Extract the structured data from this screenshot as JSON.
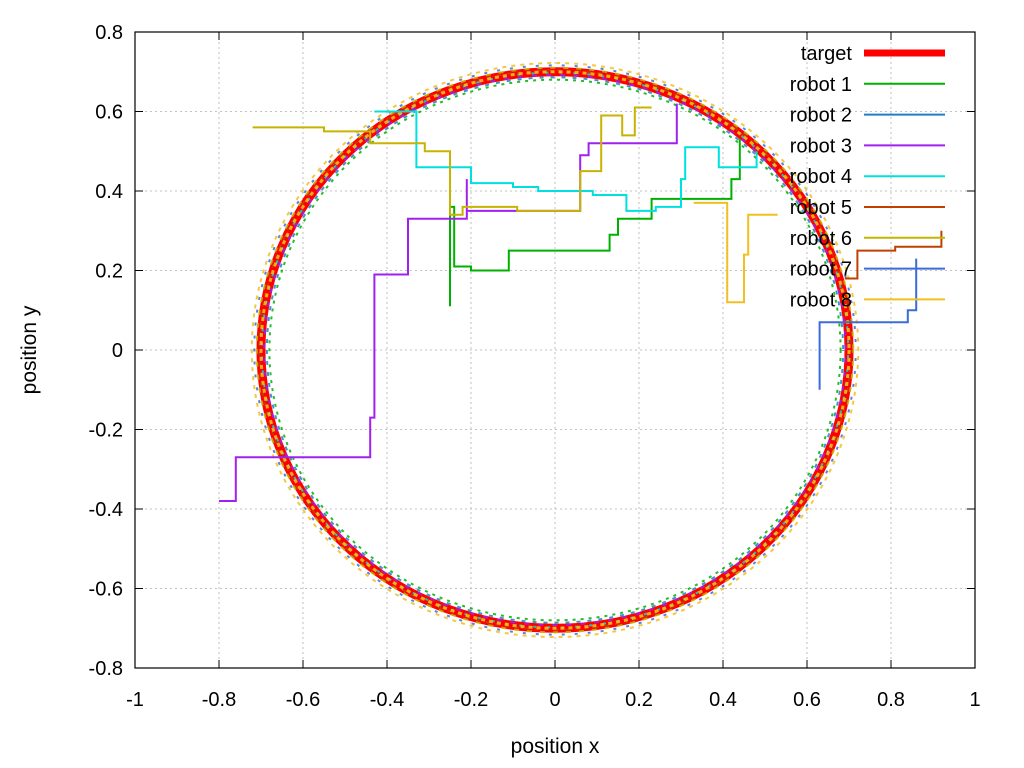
{
  "chart_data": {
    "type": "line",
    "title": "",
    "xlabel": "position x",
    "ylabel": "position y",
    "xlim": [
      -1,
      1
    ],
    "ylim": [
      -0.8,
      0.8
    ],
    "xticks": [
      -1,
      -0.8,
      -0.6,
      -0.4,
      -0.2,
      0,
      0.2,
      0.4,
      0.6,
      0.8,
      1
    ],
    "xtick_labels": [
      "-1",
      "-0.8",
      "-0.6",
      "-0.4",
      "-0.2",
      "0",
      "0.2",
      "0.4",
      "0.6",
      "0.8",
      "1"
    ],
    "yticks": [
      -0.8,
      -0.6,
      -0.4,
      -0.2,
      0,
      0.2,
      0.4,
      0.6,
      0.8
    ],
    "ytick_labels": [
      "-0.8",
      "-0.6",
      "-0.4",
      "-0.2",
      "0",
      "0.2",
      "0.4",
      "0.6",
      "0.8"
    ],
    "grid": true,
    "legend_position": "top-right",
    "target": {
      "name": "target",
      "shape": "circle",
      "center": [
        0,
        0
      ],
      "radius": 0.7,
      "color": "#ff0000"
    },
    "series": [
      {
        "name": "robot 1",
        "color": "#00b000",
        "step": true,
        "points": [
          [
            -0.25,
            0.11
          ],
          [
            -0.25,
            0.36
          ],
          [
            -0.24,
            0.36
          ],
          [
            -0.24,
            0.21
          ],
          [
            -0.2,
            0.21
          ],
          [
            -0.2,
            0.2
          ],
          [
            -0.11,
            0.2
          ],
          [
            -0.11,
            0.25
          ],
          [
            0.13,
            0.25
          ],
          [
            0.13,
            0.29
          ],
          [
            0.15,
            0.29
          ],
          [
            0.15,
            0.33
          ],
          [
            0.23,
            0.33
          ],
          [
            0.23,
            0.35
          ],
          [
            0.23,
            0.38
          ],
          [
            0.42,
            0.38
          ],
          [
            0.42,
            0.43
          ],
          [
            0.44,
            0.43
          ],
          [
            0.44,
            0.53
          ]
        ]
      },
      {
        "name": "robot 2",
        "color": "#1e7fc8",
        "step": true,
        "points": []
      },
      {
        "name": "robot 3",
        "color": "#a020f0",
        "step": true,
        "points": [
          [
            -0.8,
            -0.38
          ],
          [
            -0.76,
            -0.38
          ],
          [
            -0.76,
            -0.27
          ],
          [
            -0.44,
            -0.27
          ],
          [
            -0.44,
            -0.17
          ],
          [
            -0.43,
            -0.17
          ],
          [
            -0.43,
            0.19
          ],
          [
            -0.35,
            0.19
          ],
          [
            -0.35,
            0.33
          ],
          [
            -0.21,
            0.33
          ],
          [
            -0.21,
            0.43
          ],
          [
            -0.21,
            0.35
          ],
          [
            0.06,
            0.35
          ],
          [
            0.06,
            0.49
          ],
          [
            0.08,
            0.49
          ],
          [
            0.08,
            0.52
          ],
          [
            0.29,
            0.52
          ],
          [
            0.29,
            0.62
          ]
        ]
      },
      {
        "name": "robot 4",
        "color": "#00e0e0",
        "step": true,
        "points": [
          [
            -0.43,
            0.6
          ],
          [
            -0.33,
            0.6
          ],
          [
            -0.33,
            0.46
          ],
          [
            -0.2,
            0.46
          ],
          [
            -0.2,
            0.42
          ],
          [
            -0.1,
            0.42
          ],
          [
            -0.1,
            0.41
          ],
          [
            -0.04,
            0.41
          ],
          [
            -0.04,
            0.4
          ],
          [
            0.09,
            0.4
          ],
          [
            0.09,
            0.39
          ],
          [
            0.17,
            0.39
          ],
          [
            0.17,
            0.35
          ],
          [
            0.24,
            0.35
          ],
          [
            0.24,
            0.36
          ],
          [
            0.3,
            0.36
          ],
          [
            0.3,
            0.43
          ],
          [
            0.31,
            0.43
          ],
          [
            0.31,
            0.51
          ],
          [
            0.39,
            0.51
          ],
          [
            0.39,
            0.46
          ],
          [
            0.48,
            0.46
          ],
          [
            0.48,
            0.5
          ]
        ]
      },
      {
        "name": "robot 5",
        "color": "#c04000",
        "step": true,
        "points": [
          [
            0.69,
            0.18
          ],
          [
            0.72,
            0.18
          ],
          [
            0.72,
            0.25
          ],
          [
            0.81,
            0.25
          ],
          [
            0.81,
            0.26
          ],
          [
            0.92,
            0.26
          ],
          [
            0.92,
            0.3
          ]
        ]
      },
      {
        "name": "robot 6",
        "color": "#c8b400",
        "step": true,
        "points": [
          [
            -0.72,
            0.56
          ],
          [
            -0.65,
            0.56
          ],
          [
            -0.65,
            0.56
          ],
          [
            -0.55,
            0.56
          ],
          [
            -0.55,
            0.55
          ],
          [
            -0.44,
            0.55
          ],
          [
            -0.44,
            0.52
          ],
          [
            -0.31,
            0.52
          ],
          [
            -0.31,
            0.5
          ],
          [
            -0.25,
            0.5
          ],
          [
            -0.25,
            0.34
          ],
          [
            -0.22,
            0.34
          ],
          [
            -0.22,
            0.36
          ],
          [
            -0.09,
            0.36
          ],
          [
            -0.09,
            0.35
          ],
          [
            0.06,
            0.35
          ],
          [
            0.06,
            0.45
          ],
          [
            0.11,
            0.45
          ],
          [
            0.11,
            0.59
          ],
          [
            0.16,
            0.59
          ],
          [
            0.16,
            0.54
          ],
          [
            0.19,
            0.54
          ],
          [
            0.19,
            0.61
          ],
          [
            0.23,
            0.61
          ]
        ]
      },
      {
        "name": "robot 7",
        "color": "#3c6cd8",
        "step": true,
        "points": [
          [
            0.63,
            -0.1
          ],
          [
            0.63,
            0.07
          ],
          [
            0.84,
            0.07
          ],
          [
            0.84,
            0.1
          ],
          [
            0.86,
            0.1
          ],
          [
            0.86,
            0.23
          ]
        ]
      },
      {
        "name": "robot 8",
        "color": "#f0c020",
        "step": true,
        "points": [
          [
            0.33,
            0.37
          ],
          [
            0.41,
            0.37
          ],
          [
            0.41,
            0.12
          ],
          [
            0.45,
            0.12
          ],
          [
            0.45,
            0.24
          ],
          [
            0.46,
            0.24
          ],
          [
            0.46,
            0.34
          ],
          [
            0.53,
            0.34
          ]
        ]
      }
    ]
  }
}
